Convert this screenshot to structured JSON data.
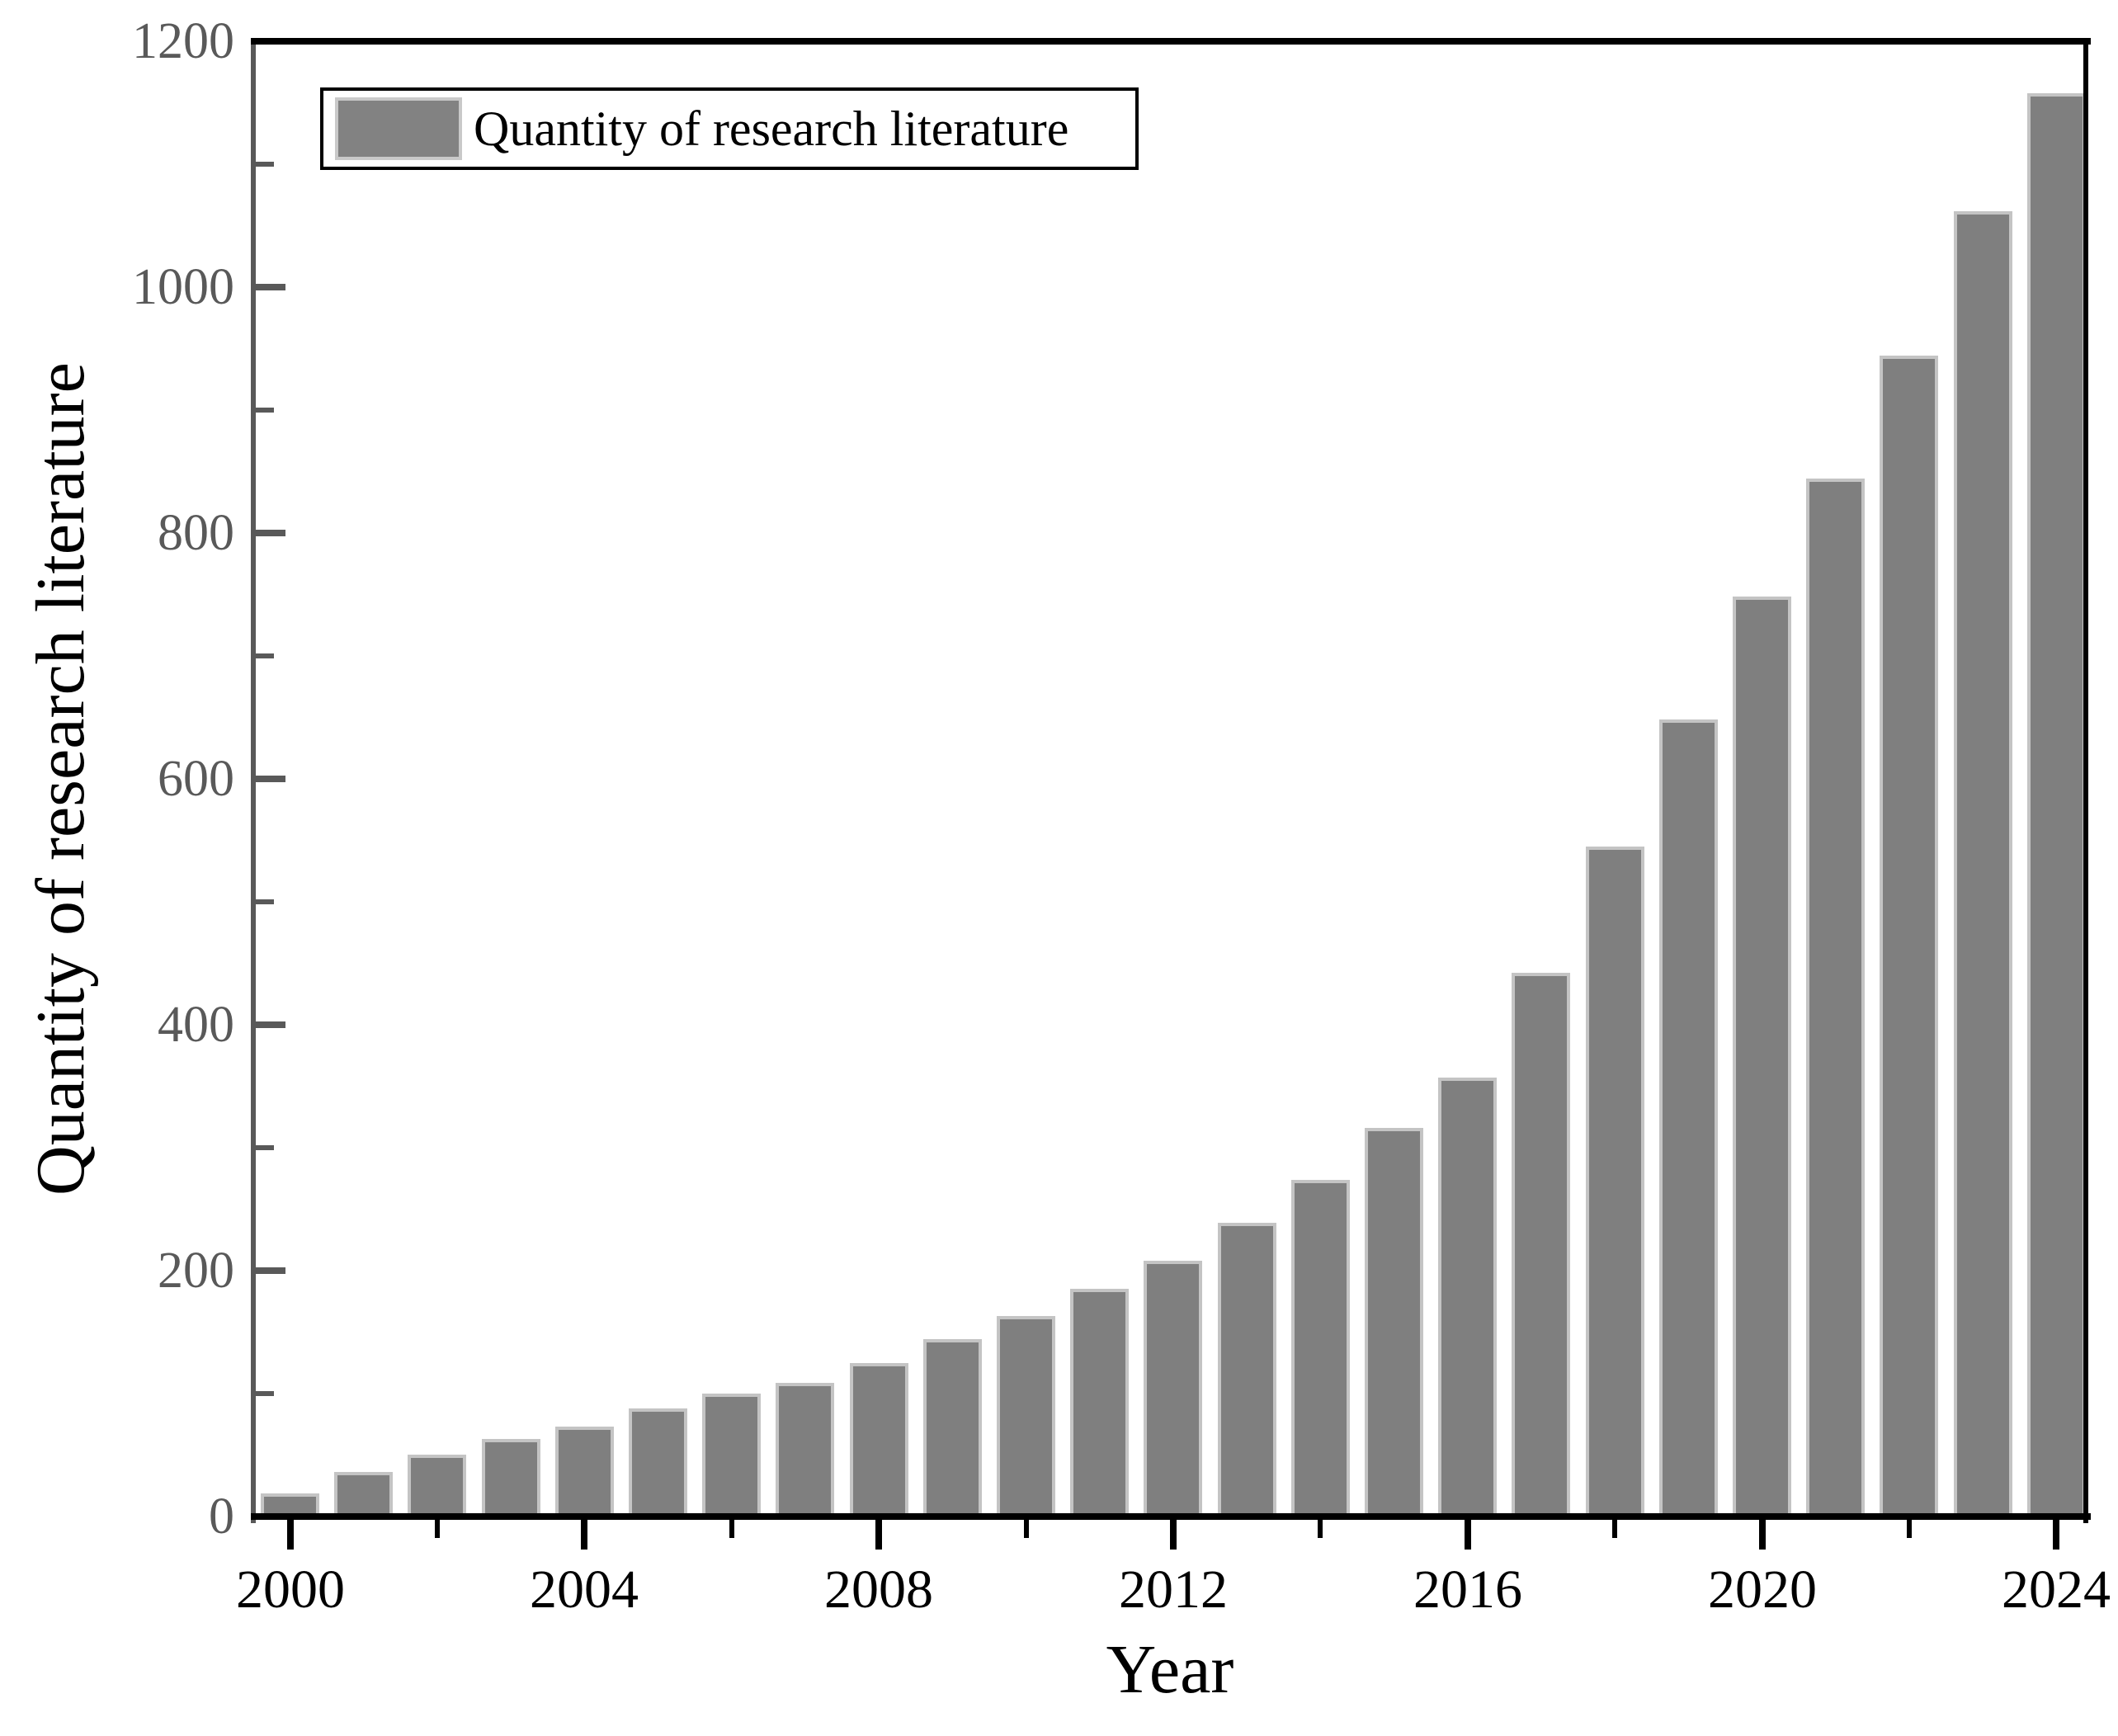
{
  "legend": {
    "label": "Quantity of research literature"
  },
  "colors": {
    "bar_fill": "#7f7f7f",
    "bar_edge": "#c4c4c4",
    "left_axis": "#595959",
    "frame": "#000000",
    "y_tick_text": "#595959",
    "x_tick_text": "#000000"
  },
  "chart_data": {
    "type": "bar",
    "title": "",
    "xlabel": "Year",
    "ylabel": "Quantity of research literature",
    "legend_entries": [
      "Quantity of research literature"
    ],
    "legend_position": "upper left",
    "grid": false,
    "x": [
      2000,
      2001,
      2002,
      2003,
      2004,
      2005,
      2006,
      2007,
      2008,
      2009,
      2010,
      2011,
      2012,
      2013,
      2014,
      2015,
      2016,
      2017,
      2018,
      2019,
      2020,
      2021,
      2022,
      2023,
      2024
    ],
    "values": [
      19,
      36,
      50,
      63,
      73,
      88,
      100,
      109,
      125,
      144,
      163,
      185,
      208,
      239,
      274,
      316,
      357,
      442,
      545,
      648,
      748,
      844,
      944,
      1062,
      1158
    ],
    "xlim": [
      1999.5,
      2024.4
    ],
    "ylim": [
      0,
      1200
    ],
    "yticks_major": [
      0,
      200,
      400,
      600,
      800,
      1000,
      1200
    ],
    "yticks_minor": [
      100,
      300,
      500,
      700,
      900,
      1100
    ],
    "xticks_major": [
      2000,
      2004,
      2008,
      2012,
      2016,
      2020,
      2024
    ],
    "xticks_minor": [
      2002,
      2006,
      2010,
      2014,
      2018,
      2022
    ],
    "y_tick_labels": [
      "0",
      "200",
      "400",
      "600",
      "800",
      "1000",
      "1200"
    ],
    "x_tick_labels": [
      "2000",
      "2004",
      "2008",
      "2012",
      "2016",
      "2020",
      "2024"
    ]
  }
}
